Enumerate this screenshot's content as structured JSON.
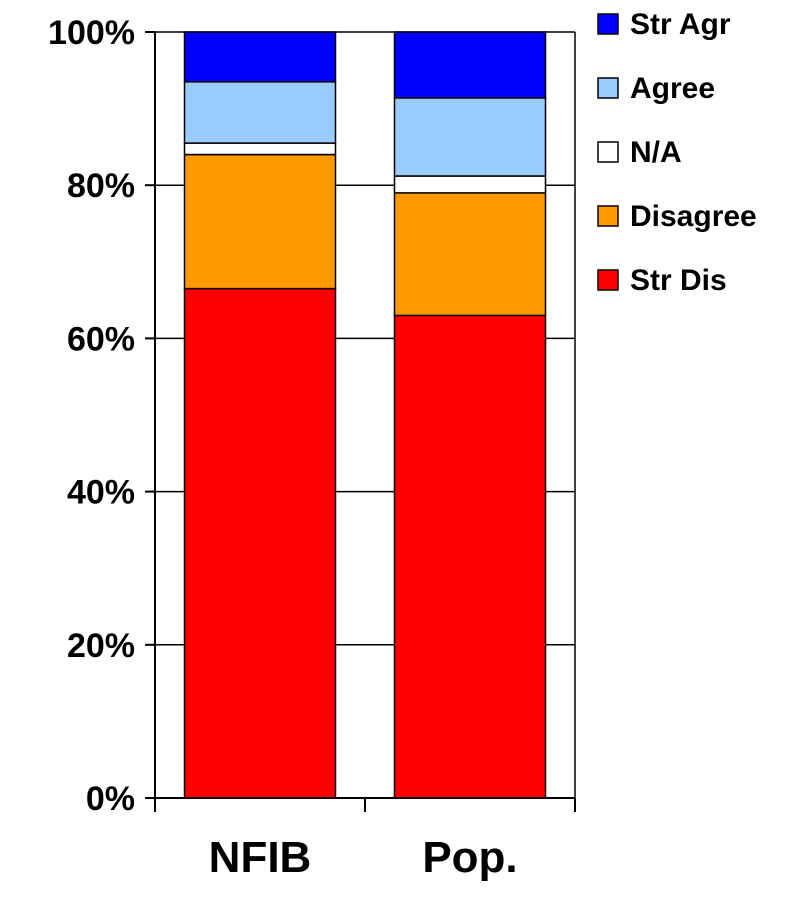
{
  "chart_data": {
    "type": "bar",
    "stacked": true,
    "percent": true,
    "categories": [
      "NFIB",
      "Pop."
    ],
    "series": [
      {
        "name": "Str Dis",
        "values": [
          66.5,
          63.0
        ],
        "color": "#ff0000"
      },
      {
        "name": "Disagree",
        "values": [
          17.5,
          16.0
        ],
        "color": "#ff9900"
      },
      {
        "name": "N/A",
        "values": [
          1.5,
          2.2
        ],
        "color": "#ffffff"
      },
      {
        "name": "Agree",
        "values": [
          8.0,
          10.2
        ],
        "color": "#99ccff"
      },
      {
        "name": "Str Agr",
        "values": [
          6.5,
          8.6
        ],
        "color": "#0000ff"
      }
    ],
    "ylim": [
      0,
      100
    ],
    "yticks": [
      "0%",
      "20%",
      "40%",
      "60%",
      "80%",
      "100%"
    ],
    "grid": true,
    "legend_position": "top-right",
    "legend_order": [
      "Str Agr",
      "Agree",
      "N/A",
      "Disagree",
      "Str Dis"
    ]
  }
}
